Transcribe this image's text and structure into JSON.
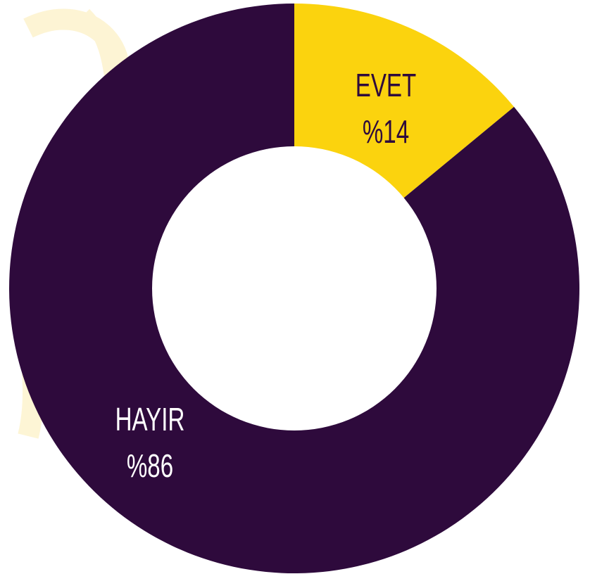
{
  "chart_data": {
    "type": "donut",
    "categories": [
      "EVET",
      "HAYIR"
    ],
    "values": [
      14,
      86
    ],
    "value_labels": [
      "%14",
      "%86"
    ],
    "colors": [
      "#fbd30e",
      "#2e0a3c"
    ]
  }
}
